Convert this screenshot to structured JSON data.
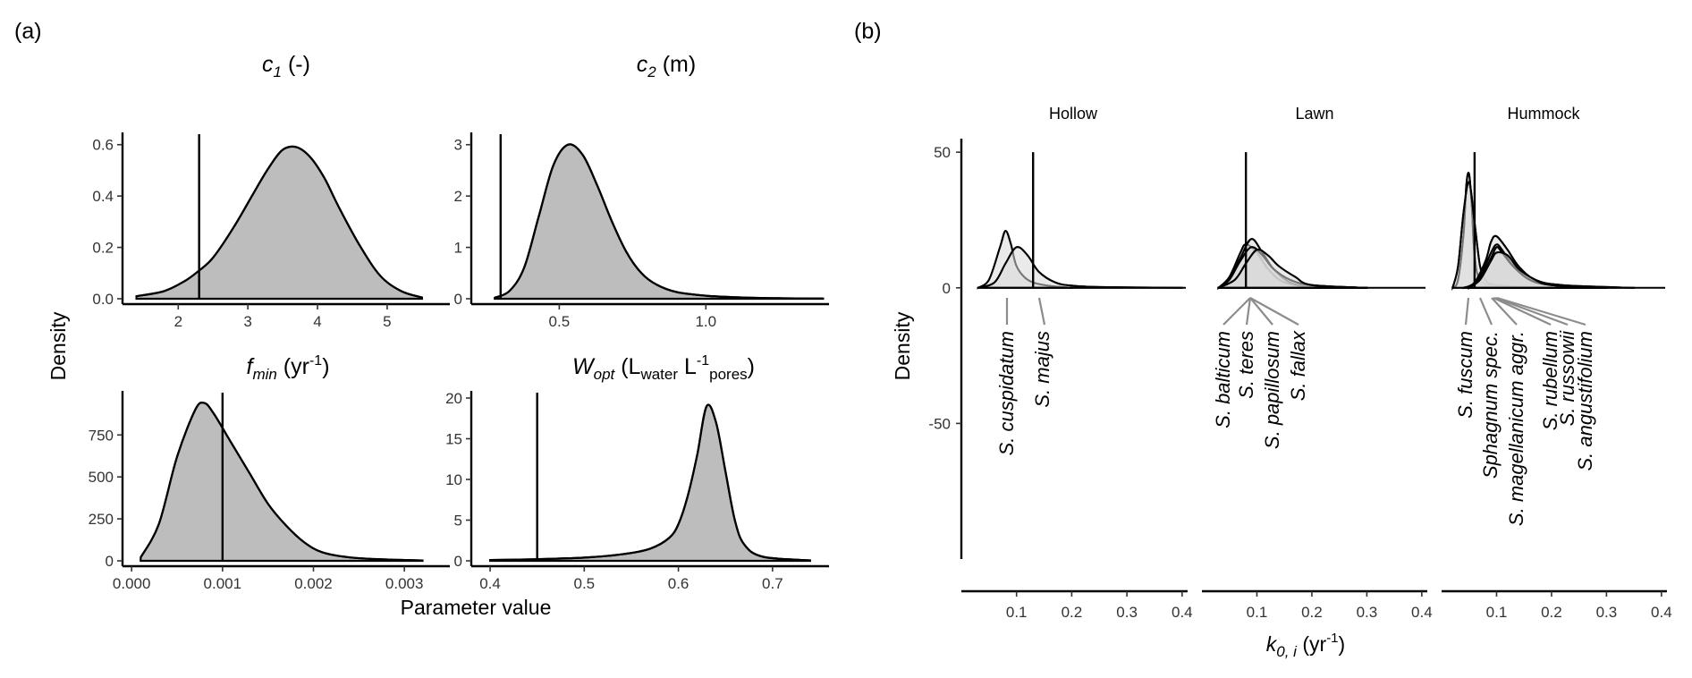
{
  "panel_a_label": "(a)",
  "panel_b_label": "(b)",
  "panel_a": {
    "ylabel": "Density",
    "xlabel": "Parameter value",
    "titles": {
      "c1": {
        "sym": "c",
        "sub": "1",
        "unit": " (-)"
      },
      "c2": {
        "sym": "c",
        "sub": "2",
        "unit": " (m)"
      },
      "fmin": {
        "sym": "f",
        "sub": "min",
        "unit_pre": " (yr",
        "unit_sup": "-1",
        "unit_post": ")"
      },
      "wopt": {
        "sym": "W",
        "sub": "opt",
        "u1": " (L",
        "u2": "water",
        "u3": " L",
        "u4": "-1",
        "u5": "pores",
        "u6": ")"
      }
    }
  },
  "panel_b": {
    "ylabel": "Density",
    "xlabel": {
      "sym": "k",
      "sub": "0, i",
      "unit_pre": " (yr",
      "unit_sup": "-1",
      "unit_post": ")"
    },
    "strips": [
      "Hollow",
      "Lawn",
      "Hummock"
    ],
    "species": {
      "hollow": [
        "S. cuspidatum",
        "S. majus"
      ],
      "lawn": [
        "S. balticum",
        "S. teres",
        "S. papillosum",
        "S. fallax"
      ],
      "hummock": [
        "S. fuscum",
        "Sphagnum spec.",
        "S. magellanicum aggr.",
        "S. rubellum",
        "S. russowii",
        "S. angustifolium"
      ]
    }
  },
  "chart_data": [
    {
      "type": "area",
      "panel": "c1",
      "title": "c1 (-)",
      "x": [
        1.4,
        1.8,
        2.1,
        2.3,
        2.5,
        2.8,
        3.1,
        3.3,
        3.5,
        3.7,
        3.9,
        4.1,
        4.3,
        4.6,
        4.9,
        5.2,
        5.5
      ],
      "y": [
        0.01,
        0.03,
        0.07,
        0.11,
        0.16,
        0.28,
        0.42,
        0.51,
        0.58,
        0.59,
        0.55,
        0.47,
        0.36,
        0.21,
        0.09,
        0.03,
        0.005
      ],
      "reference_line": 2.3,
      "xlim": [
        1.2,
        5.9
      ],
      "ylim": [
        0,
        0.62
      ],
      "xticks": [
        2,
        3,
        4,
        5
      ],
      "yticks": [
        0.0,
        0.2,
        0.4,
        0.6
      ],
      "ytick_labels": [
        "0.0",
        "0.2",
        "0.4",
        "0.6"
      ]
    },
    {
      "type": "area",
      "panel": "c2",
      "title": "c2 (m)",
      "x": [
        0.28,
        0.33,
        0.38,
        0.43,
        0.48,
        0.53,
        0.58,
        0.63,
        0.68,
        0.73,
        0.78,
        0.83,
        0.9,
        1.0,
        1.1,
        1.25,
        1.4
      ],
      "y": [
        0.02,
        0.15,
        0.6,
        1.6,
        2.6,
        3.0,
        2.8,
        2.2,
        1.5,
        0.9,
        0.5,
        0.28,
        0.13,
        0.06,
        0.03,
        0.01,
        0.005
      ],
      "reference_line": 0.3,
      "xlim": [
        0.2,
        1.42
      ],
      "ylim": [
        0,
        3.1
      ],
      "xticks": [
        0.5,
        1.0
      ],
      "xtick_labels": [
        "0.5",
        "1.0"
      ],
      "yticks": [
        0,
        1,
        2,
        3
      ]
    },
    {
      "type": "area",
      "panel": "fmin",
      "title": "fmin (yr-1)",
      "x": [
        0.0001,
        0.0003,
        0.0005,
        0.0007,
        0.0008,
        0.0009,
        0.0011,
        0.0013,
        0.0015,
        0.0017,
        0.0019,
        0.0021,
        0.0024,
        0.0028,
        0.0032
      ],
      "y": [
        20,
        220,
        620,
        900,
        940,
        880,
        700,
        520,
        340,
        210,
        110,
        50,
        20,
        8,
        2
      ],
      "reference_line": 0.001,
      "xlim": [
        -0.0001,
        0.0035
      ],
      "ylim": [
        0,
        970
      ],
      "xticks": [
        0.0,
        0.001,
        0.002,
        0.003
      ],
      "xtick_labels": [
        "0.000",
        "0.001",
        "0.002",
        "0.003"
      ],
      "yticks": [
        0,
        250,
        500,
        750
      ]
    },
    {
      "type": "area",
      "panel": "wopt",
      "title": "Wopt (Lwater L-1pores)",
      "x": [
        0.4,
        0.45,
        0.5,
        0.54,
        0.57,
        0.59,
        0.6,
        0.61,
        0.62,
        0.63,
        0.64,
        0.65,
        0.66,
        0.67,
        0.69,
        0.74
      ],
      "y": [
        0.1,
        0.2,
        0.4,
        0.8,
        1.5,
        2.8,
        4.5,
        8,
        13,
        19,
        17,
        11,
        5,
        2,
        0.5,
        0.05
      ],
      "reference_line": 0.45,
      "xlim": [
        0.38,
        0.76
      ],
      "ylim": [
        0,
        20
      ],
      "xticks": [
        0.4,
        0.5,
        0.6,
        0.7
      ],
      "yticks": [
        0,
        5,
        10,
        15,
        20
      ]
    },
    {
      "type": "area",
      "panel": "k0i",
      "facets": [
        "Hollow",
        "Lawn",
        "Hummock"
      ],
      "ylim": [
        -100,
        55
      ],
      "yticks": [
        -50,
        0,
        50
      ],
      "xlim": [
        0,
        0.41
      ],
      "xticks": [
        0.1,
        0.2,
        0.3,
        0.4
      ],
      "reference_lines": {
        "Hollow": 0.13,
        "Lawn": 0.08,
        "Hummock": 0.06
      },
      "series": [
        {
          "name": "S. cuspidatum",
          "facet": "Hollow",
          "x": [
            0.03,
            0.05,
            0.07,
            0.08,
            0.09,
            0.1,
            0.12,
            0.15,
            0.2
          ],
          "y": [
            0,
            3,
            15,
            21,
            16,
            8,
            3,
            1,
            0
          ]
        },
        {
          "name": "S. majus",
          "facet": "Hollow",
          "x": [
            0.03,
            0.06,
            0.08,
            0.1,
            0.12,
            0.14,
            0.17,
            0.2,
            0.25,
            0.4
          ],
          "y": [
            0,
            2,
            9,
            15,
            12,
            6,
            2,
            0.8,
            0.3,
            0
          ]
        },
        {
          "name": "S. balticum",
          "facet": "Lawn",
          "x": [
            0.03,
            0.05,
            0.07,
            0.08,
            0.1,
            0.12,
            0.15,
            0.2,
            0.3
          ],
          "y": [
            0,
            4,
            13,
            16,
            13,
            7,
            2,
            0.5,
            0
          ]
        },
        {
          "name": "S. teres",
          "facet": "Lawn",
          "x": [
            0.03,
            0.05,
            0.07,
            0.09,
            0.11,
            0.13,
            0.16,
            0.2,
            0.3
          ],
          "y": [
            0,
            3,
            11,
            18,
            13,
            7,
            2,
            0.5,
            0
          ]
        },
        {
          "name": "S. papillosum",
          "facet": "Lawn",
          "x": [
            0.03,
            0.05,
            0.07,
            0.09,
            0.11,
            0.13,
            0.16,
            0.2,
            0.3
          ],
          "y": [
            0,
            3,
            10,
            15,
            12,
            7,
            3,
            1,
            0
          ]
        },
        {
          "name": "S. fallax",
          "facet": "Lawn",
          "x": [
            0.03,
            0.06,
            0.08,
            0.1,
            0.12,
            0.14,
            0.17,
            0.2,
            0.3
          ],
          "y": [
            0,
            3,
            9,
            14,
            12,
            8,
            4,
            1,
            0
          ]
        },
        {
          "name": "S. fuscum",
          "facet": "Hummock",
          "x": [
            0.02,
            0.03,
            0.04,
            0.045,
            0.05,
            0.055,
            0.06,
            0.07,
            0.1,
            0.2
          ],
          "y": [
            0,
            3,
            20,
            38,
            42,
            30,
            12,
            3,
            0.5,
            0
          ]
        },
        {
          "name": "Sphagnum spec.",
          "facet": "Hummock",
          "x": [
            0.02,
            0.03,
            0.04,
            0.05,
            0.06,
            0.07,
            0.08,
            0.1,
            0.2
          ],
          "y": [
            0,
            8,
            28,
            39,
            24,
            8,
            3,
            1,
            0
          ]
        },
        {
          "name": "S. magellanicum aggr.",
          "facet": "Hummock",
          "x": [
            0.04,
            0.06,
            0.08,
            0.09,
            0.1,
            0.12,
            0.14,
            0.17,
            0.22,
            0.35
          ],
          "y": [
            0,
            2,
            10,
            17,
            19,
            14,
            8,
            3,
            1,
            0
          ]
        },
        {
          "name": "S. rubellum",
          "facet": "Hummock",
          "x": [
            0.05,
            0.07,
            0.09,
            0.1,
            0.11,
            0.13,
            0.16,
            0.2,
            0.3
          ],
          "y": [
            0,
            4,
            13,
            16,
            14,
            8,
            3,
            1,
            0
          ]
        },
        {
          "name": "S. russowii",
          "facet": "Hummock",
          "x": [
            0.05,
            0.07,
            0.09,
            0.1,
            0.11,
            0.13,
            0.16,
            0.2,
            0.3
          ],
          "y": [
            0,
            3,
            11,
            15,
            13,
            8,
            3,
            1,
            0
          ]
        },
        {
          "name": "S. angustifolium",
          "facet": "Hummock",
          "x": [
            0.05,
            0.07,
            0.09,
            0.1,
            0.12,
            0.14,
            0.17,
            0.2,
            0.3
          ],
          "y": [
            0,
            3,
            10,
            13,
            12,
            7,
            3,
            1,
            0
          ]
        }
      ]
    }
  ]
}
